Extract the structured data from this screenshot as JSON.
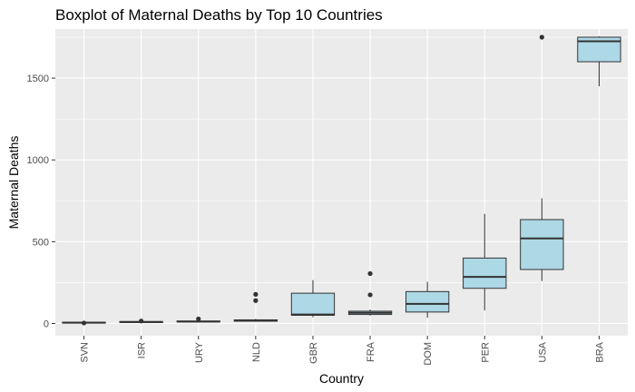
{
  "chart_data": {
    "type": "boxplot",
    "title": "Boxplot of Maternal Deaths by Top 10 Countries",
    "xlabel": "Country",
    "ylabel": "Maternal Deaths",
    "ylim": [
      -75,
      1800
    ],
    "yticks": [
      0,
      500,
      1000,
      1500
    ],
    "grid": true,
    "colors": {
      "panel": "#ebebeb",
      "grid_major": "#ffffff",
      "box_fill": "#add8e6",
      "box_stroke": "#333333",
      "outlier": "#333333",
      "tick_text": "#4d4d4d"
    },
    "categories": [
      "SVN",
      "ISR",
      "URY",
      "NLD",
      "GBR",
      "FRA",
      "DOM",
      "PER",
      "USA",
      "BRA"
    ],
    "boxes": [
      {
        "country": "SVN",
        "min": 1,
        "q1": 3,
        "median": 5,
        "q3": 8,
        "max": 10,
        "outliers": [
          3
        ]
      },
      {
        "country": "ISR",
        "min": 3,
        "q1": 6,
        "median": 9,
        "q3": 12,
        "max": 16,
        "outliers": [
          15
        ]
      },
      {
        "country": "URY",
        "min": 8,
        "q1": 10,
        "median": 12,
        "q3": 15,
        "max": 18,
        "outliers": [
          28
        ]
      },
      {
        "country": "NLD",
        "min": 10,
        "q1": 14,
        "median": 17,
        "q3": 22,
        "max": 28,
        "outliers": [
          140,
          178
        ]
      },
      {
        "country": "GBR",
        "min": 38,
        "q1": 50,
        "median": 55,
        "q3": 185,
        "max": 265,
        "outliers": []
      },
      {
        "country": "FRA",
        "min": 48,
        "q1": 55,
        "median": 65,
        "q3": 75,
        "max": 85,
        "outliers": [
          175,
          305
        ]
      },
      {
        "country": "DOM",
        "min": 35,
        "q1": 70,
        "median": 120,
        "q3": 195,
        "max": 255,
        "outliers": []
      },
      {
        "country": "PER",
        "min": 80,
        "q1": 215,
        "median": 285,
        "q3": 400,
        "max": 670,
        "outliers": []
      },
      {
        "country": "USA",
        "min": 260,
        "q1": 330,
        "median": 520,
        "q3": 635,
        "max": 765,
        "outliers": [
          1750
        ]
      },
      {
        "country": "BRA",
        "min": 1450,
        "q1": 1600,
        "median": 1725,
        "q3": 1750,
        "max": 1755,
        "outliers": []
      }
    ]
  }
}
